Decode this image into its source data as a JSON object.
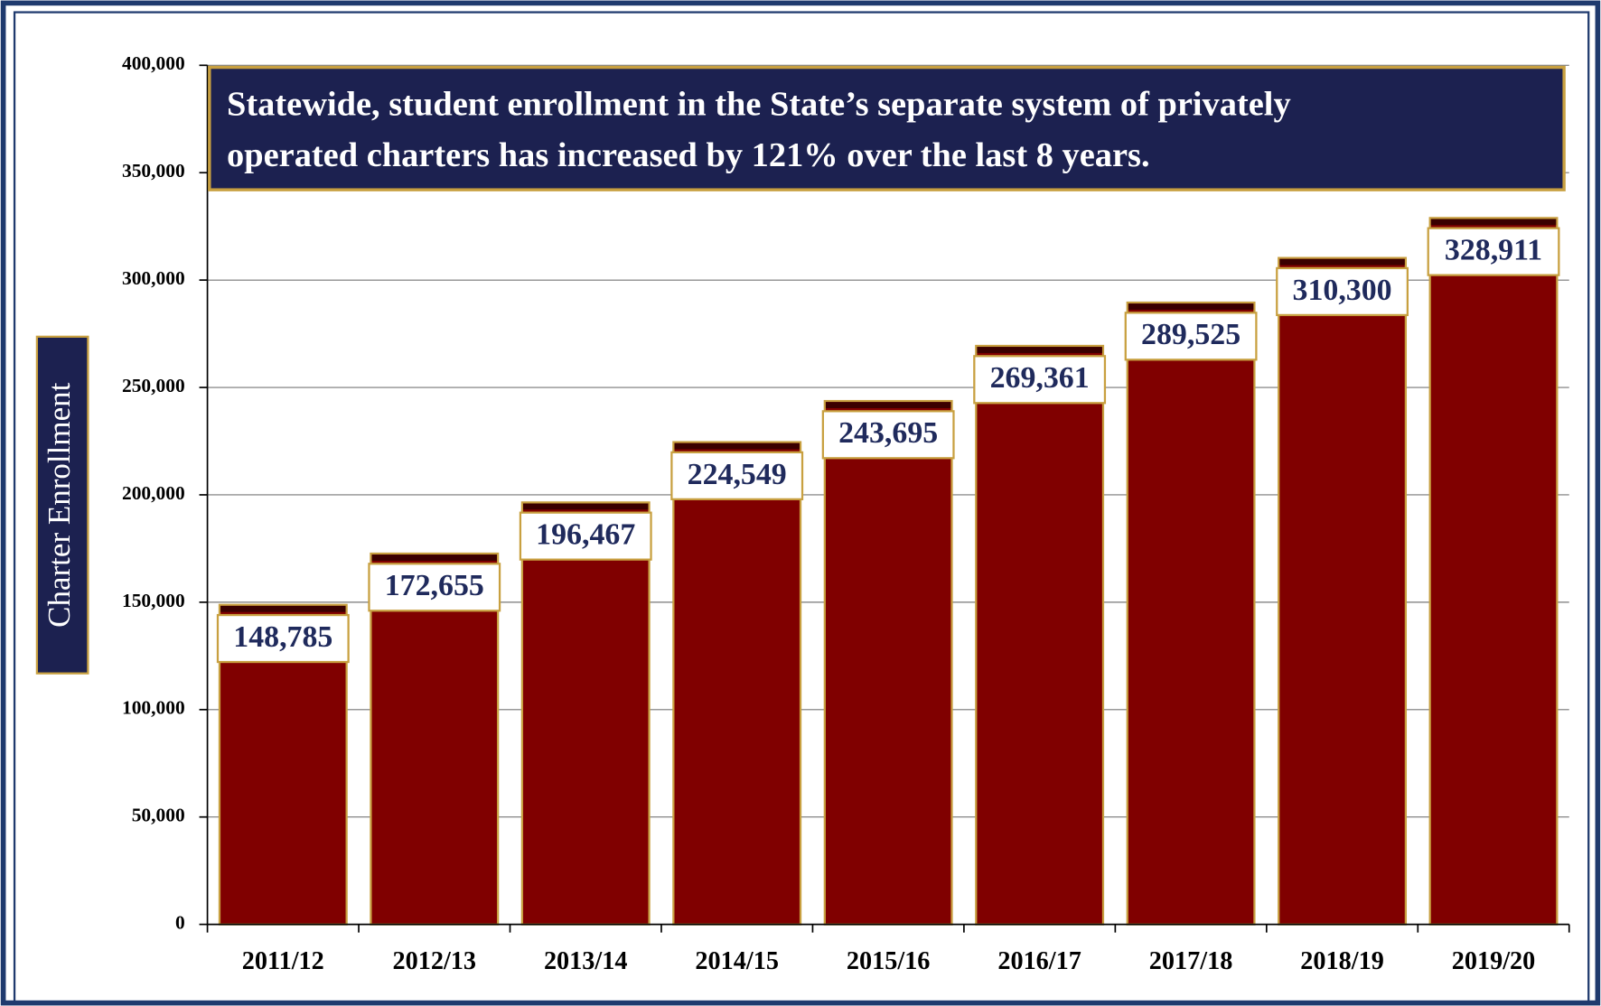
{
  "chart_data": {
    "type": "bar",
    "annotation": [
      "Statewide, student enrollment in the State’s separate system of privately",
      "operated charters has increased by 121% over the last 8 years."
    ],
    "y_label": "Charter Enrollment",
    "categories": [
      "2011/12",
      "2012/13",
      "2013/14",
      "2014/15",
      "2015/16",
      "2016/17",
      "2017/18",
      "2018/19",
      "2019/20"
    ],
    "values": [
      148785,
      172655,
      196467,
      224549,
      243695,
      269361,
      289525,
      310300,
      328911
    ],
    "value_labels": [
      "148,785",
      "172,655",
      "196,467",
      "224,549",
      "243,695",
      "269,361",
      "289,525",
      "310,300",
      "328,911"
    ],
    "color": "#800000",
    "ylim": [
      0,
      400000
    ],
    "yticks": [
      0,
      {
        "value": 50000,
        "label": "50,000"
      },
      {
        "value": 100000,
        "label": "100,000"
      },
      {
        "value": 150000,
        "label": "150,000"
      },
      {
        "value": 200000,
        "label": "200,000"
      },
      {
        "value": 250000,
        "label": "250,000"
      },
      {
        "value": 300000,
        "label": "300,000"
      },
      {
        "value": 350000,
        "label": "350,000"
      },
      {
        "value": 400000,
        "label": "400,000"
      }
    ],
    "grid": true
  }
}
